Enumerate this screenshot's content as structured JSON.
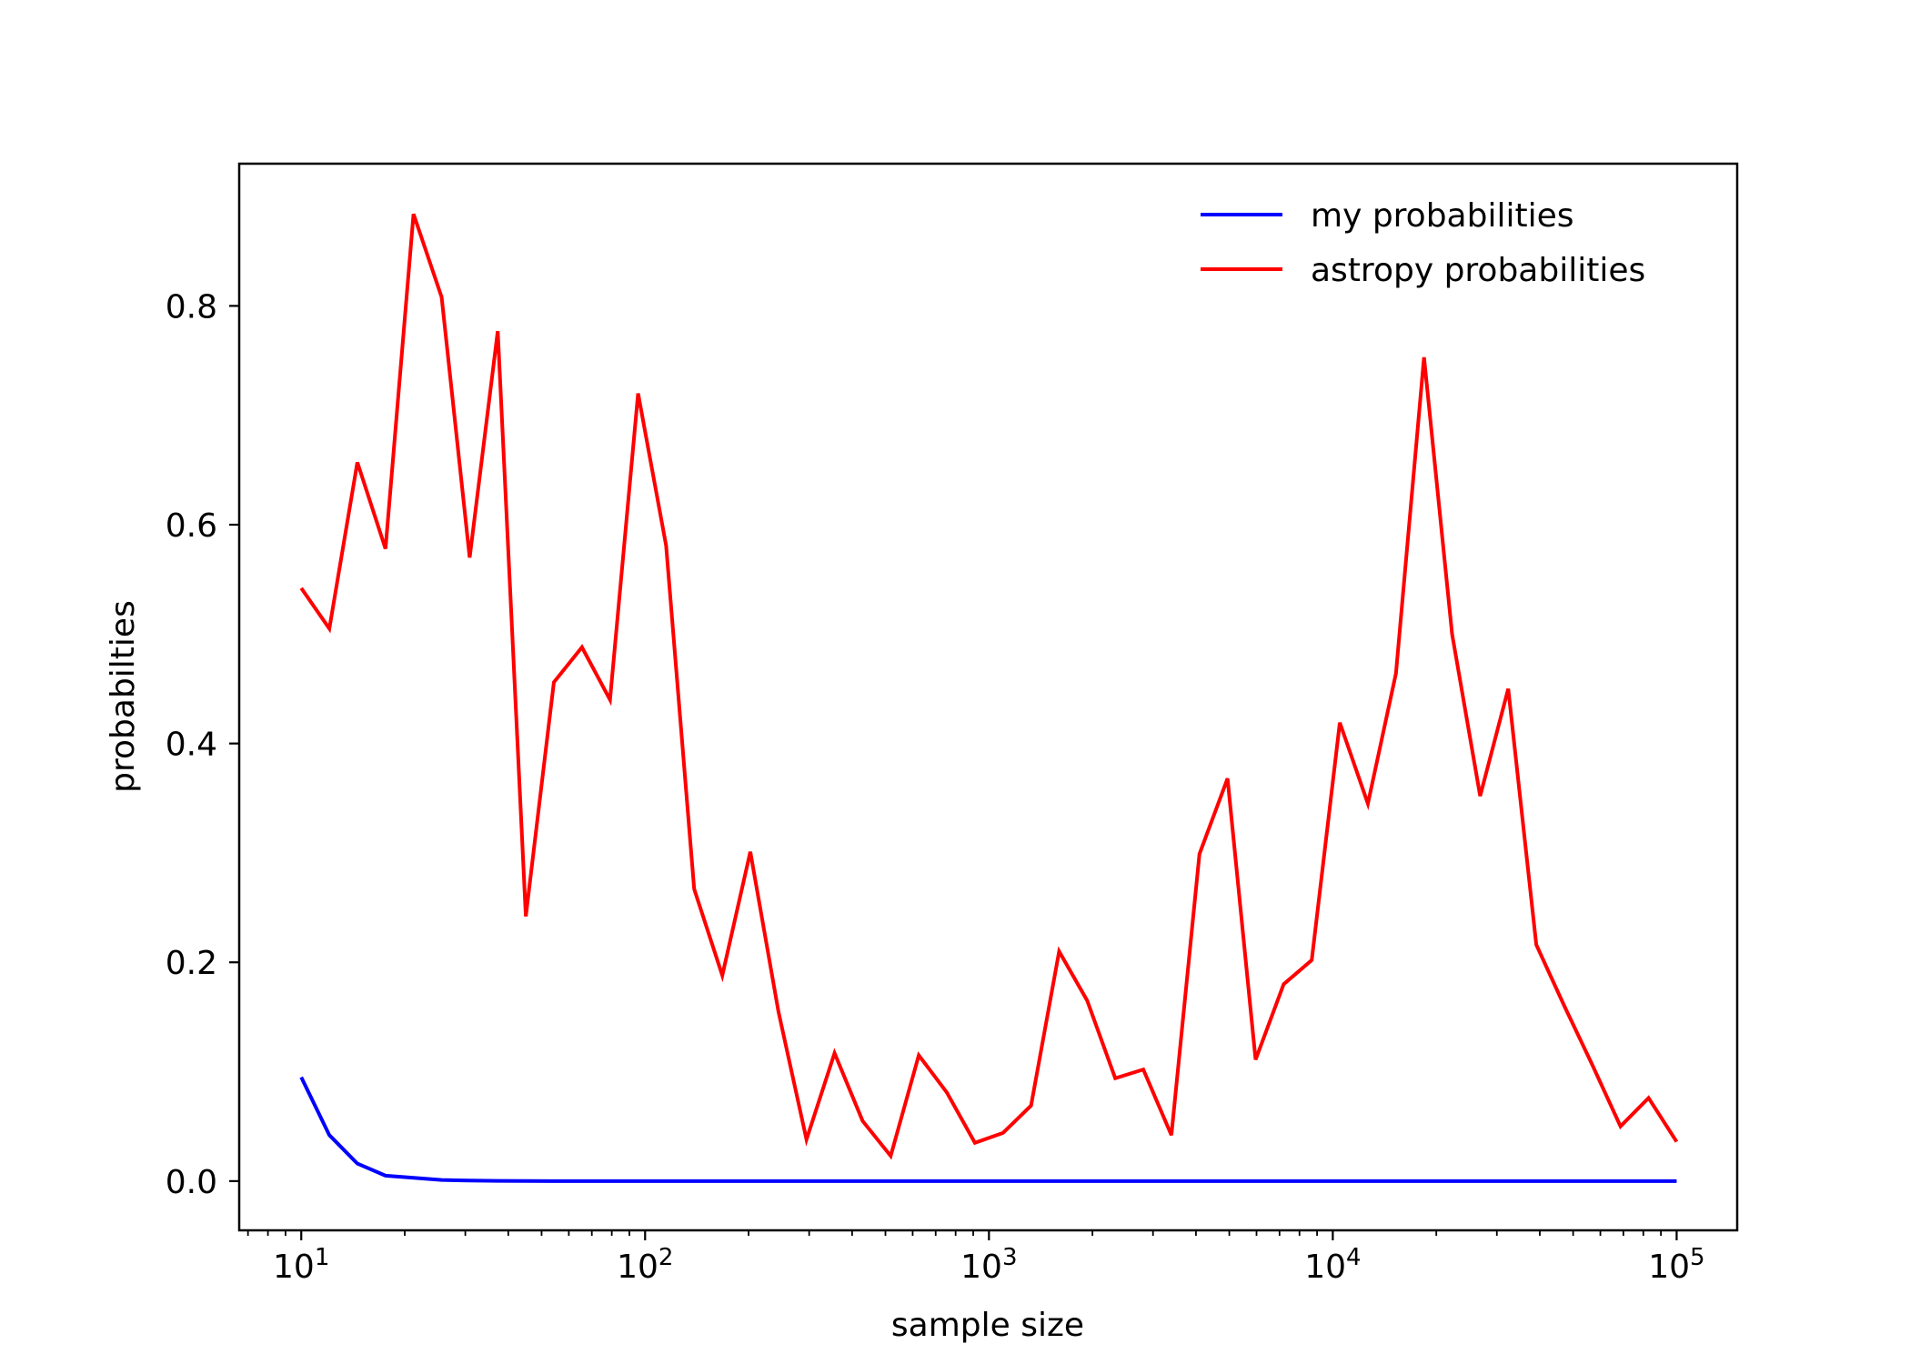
{
  "chart_data": {
    "type": "line",
    "title": "",
    "xlabel": "sample size",
    "ylabel": "probabilties",
    "xscale": "log",
    "xlim": [
      6.6,
      150000
    ],
    "ylim": [
      -0.045,
      0.93
    ],
    "grid": false,
    "legend_position": "top-right",
    "x_ticks": [
      {
        "value": 10,
        "base": "10",
        "exp": "1"
      },
      {
        "value": 100,
        "base": "10",
        "exp": "2"
      },
      {
        "value": 1000,
        "base": "10",
        "exp": "3"
      },
      {
        "value": 10000,
        "base": "10",
        "exp": "4"
      },
      {
        "value": 100000,
        "base": "10",
        "exp": "5"
      }
    ],
    "y_ticks": [
      {
        "value": 0.0,
        "label": "0.0"
      },
      {
        "value": 0.2,
        "label": "0.2"
      },
      {
        "value": 0.4,
        "label": "0.4"
      },
      {
        "value": 0.6,
        "label": "0.6"
      },
      {
        "value": 0.8,
        "label": "0.8"
      }
    ],
    "x": [
      10,
      12.07,
      14.56,
      17.58,
      21.21,
      25.6,
      30.89,
      37.28,
      44.99,
      54.29,
      65.52,
      79.06,
      95.41,
      115.1,
      138.9,
      167.7,
      202.3,
      244.2,
      294.7,
      355.6,
      429.1,
      517.9,
      625.1,
      754.3,
      910.3,
      1098.5,
      1325.7,
      1600,
      1930.7,
      2330,
      2811.8,
      3393.2,
      4094.9,
      4941.7,
      5963.6,
      7196.9,
      8685.1,
      10481,
      12649,
      15264,
      18421,
      22230,
      26827,
      32375,
      39069,
      47149,
      56899,
      68665,
      82864,
      100000
    ],
    "series": [
      {
        "name": "my probabilities",
        "color": "#0000ff",
        "values": [
          0.095,
          0.042,
          0.016,
          0.005,
          0.003,
          0.001,
          0.0005,
          0.0002,
          0.0001,
          0,
          0,
          0,
          0,
          0,
          0,
          0,
          0,
          0,
          0,
          0,
          0,
          0,
          0,
          0,
          0,
          0,
          0,
          0,
          0,
          0,
          0,
          0,
          0,
          0,
          0,
          0,
          0,
          0,
          0,
          0,
          0,
          0,
          0,
          0,
          0,
          0,
          0,
          0,
          0,
          0
        ]
      },
      {
        "name": "astropy probabilities",
        "color": "#ff0000",
        "values": [
          0.542,
          0.505,
          0.657,
          0.578,
          0.884,
          0.808,
          0.57,
          0.777,
          0.242,
          0.456,
          0.488,
          0.44,
          0.72,
          0.581,
          0.267,
          0.188,
          0.301,
          0.155,
          0.038,
          0.117,
          0.055,
          0.023,
          0.115,
          0.081,
          0.035,
          0.044,
          0.069,
          0.21,
          0.165,
          0.094,
          0.102,
          0.042,
          0.299,
          0.368,
          0.111,
          0.18,
          0.202,
          0.419,
          0.345,
          0.464,
          0.753,
          0.5,
          0.352,
          0.45,
          0.216,
          0.16,
          0.106,
          0.05,
          0.076,
          0.036
        ]
      }
    ]
  }
}
